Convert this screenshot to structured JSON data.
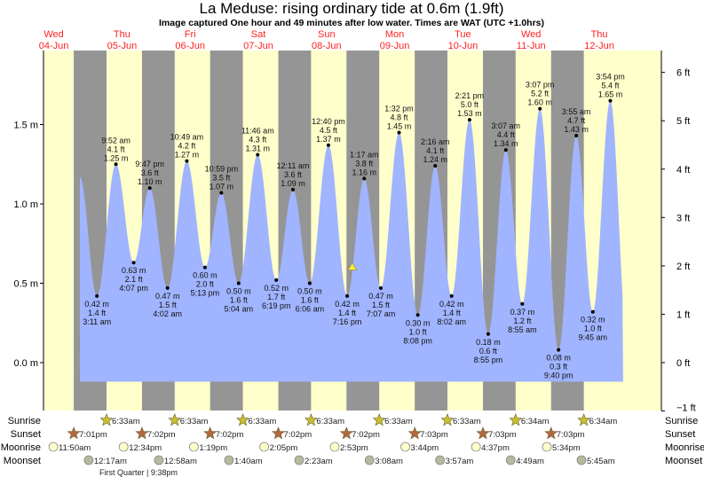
{
  "chart_data": {
    "type": "area",
    "title": "La Meduse: rising  ordinary tide at 0.6m (1.9ft)",
    "subtitle": "Image captured One hour and 49 minutes after low water. Times are WAT (UTC +1.0hrs)",
    "time_unit": "hours since Wed 04-Jun 00:00",
    "days": [
      {
        "dow": "Wed",
        "date": "04-Jun"
      },
      {
        "dow": "Thu",
        "date": "05-Jun"
      },
      {
        "dow": "Fri",
        "date": "06-Jun"
      },
      {
        "dow": "Sat",
        "date": "07-Jun"
      },
      {
        "dow": "Sun",
        "date": "08-Jun"
      },
      {
        "dow": "Mon",
        "date": "09-Jun"
      },
      {
        "dow": "Tue",
        "date": "10-Jun"
      },
      {
        "dow": "Wed",
        "date": "11-Jun"
      },
      {
        "dow": "Thu",
        "date": "12-Jun"
      }
    ],
    "y_left": {
      "ylim_m": [
        -0.3048,
        1.96
      ],
      "ticks": [
        {
          "v": 0.0,
          "label": "0.0 m"
        },
        {
          "v": 0.5,
          "label": "0.5 m"
        },
        {
          "v": 1.0,
          "label": "1.0 m"
        },
        {
          "v": 1.5,
          "label": "1.5 m"
        }
      ]
    },
    "y_right": {
      "ticks": [
        {
          "v": -1,
          "label": "−1 ft"
        },
        {
          "v": 0,
          "label": "0 ft"
        },
        {
          "v": 1,
          "label": "1 ft"
        },
        {
          "v": 2,
          "label": "2 ft"
        },
        {
          "v": 3,
          "label": "3 ft"
        },
        {
          "v": 4,
          "label": "4 ft"
        },
        {
          "v": 5,
          "label": "5 ft"
        },
        {
          "v": 6,
          "label": "6 ft"
        }
      ]
    },
    "curve_start": {
      "t": 21.2,
      "m": 1.17
    },
    "curve_end": {
      "t": 212.4,
      "m": 0.22
    },
    "current": {
      "t": 117.08,
      "m": 0.6
    },
    "tides": [
      {
        "t": 27.18,
        "type": "low",
        "m": "0.42 m",
        "ft": "1.4 ft",
        "time": "3:11 am",
        "v": 0.42
      },
      {
        "t": 33.87,
        "type": "high",
        "m": "1.25 m",
        "ft": "4.1 ft",
        "time": "9:52 am",
        "v": 1.25
      },
      {
        "t": 40.12,
        "type": "low",
        "m": "0.63 m",
        "ft": "2.1 ft",
        "time": "4:07 pm",
        "v": 0.63
      },
      {
        "t": 45.78,
        "type": "high",
        "m": "1.10 m",
        "ft": "3.6 ft",
        "time": "9:47 pm",
        "v": 1.1
      },
      {
        "t": 52.03,
        "type": "low",
        "m": "0.47 m",
        "ft": "1.5 ft",
        "time": "4:02 am",
        "v": 0.47
      },
      {
        "t": 58.82,
        "type": "high",
        "m": "1.27 m",
        "ft": "4.2 ft",
        "time": "10:49 am",
        "v": 1.27
      },
      {
        "t": 65.22,
        "type": "low",
        "m": "0.60 m",
        "ft": "2.0 ft",
        "time": "5:13 pm",
        "v": 0.6
      },
      {
        "t": 70.98,
        "type": "high",
        "m": "1.07 m",
        "ft": "3.5 ft",
        "time": "10:59 pm",
        "v": 1.07
      },
      {
        "t": 77.07,
        "type": "low",
        "m": "0.50 m",
        "ft": "1.6 ft",
        "time": "5:04 am",
        "v": 0.5
      },
      {
        "t": 83.77,
        "type": "high",
        "m": "1.31 m",
        "ft": "4.3 ft",
        "time": "11:46 am",
        "v": 1.31
      },
      {
        "t": 90.32,
        "type": "low",
        "m": "0.52 m",
        "ft": "1.7 ft",
        "time": "6:19 pm",
        "v": 0.52
      },
      {
        "t": 96.18,
        "type": "high",
        "m": "1.09 m",
        "ft": "3.6 ft",
        "time": "12:11 am",
        "v": 1.09
      },
      {
        "t": 102.1,
        "type": "low",
        "m": "0.50 m",
        "ft": "1.6 ft",
        "time": "6:06 am",
        "v": 0.5
      },
      {
        "t": 108.67,
        "type": "high",
        "m": "1.37 m",
        "ft": "4.5 ft",
        "time": "12:40 pm",
        "v": 1.37
      },
      {
        "t": 115.27,
        "type": "low",
        "m": "0.42 m",
        "ft": "1.4 ft",
        "time": "7:16 pm",
        "v": 0.42
      },
      {
        "t": 121.28,
        "type": "high",
        "m": "1.16 m",
        "ft": "3.8 ft",
        "time": "1:17 am",
        "v": 1.16
      },
      {
        "t": 127.12,
        "type": "low",
        "m": "0.47 m",
        "ft": "1.5 ft",
        "time": "7:07 am",
        "v": 0.47
      },
      {
        "t": 133.53,
        "type": "high",
        "m": "1.45 m",
        "ft": "4.8 ft",
        "time": "1:32 pm",
        "v": 1.45
      },
      {
        "t": 140.13,
        "type": "low",
        "m": "0.30 m",
        "ft": "1.0 ft",
        "time": "8:08 pm",
        "v": 0.3
      },
      {
        "t": 146.27,
        "type": "high",
        "m": "1.24 m",
        "ft": "4.1 ft",
        "time": "2:16 am",
        "v": 1.24
      },
      {
        "t": 152.03,
        "type": "low",
        "m": "0.42 m",
        "ft": "1.4 ft",
        "time": "8:02 am",
        "v": 0.42
      },
      {
        "t": 158.35,
        "type": "high",
        "m": "1.53 m",
        "ft": "5.0 ft",
        "time": "2:21 pm",
        "v": 1.53
      },
      {
        "t": 164.92,
        "type": "low",
        "m": "0.18 m",
        "ft": "0.6 ft",
        "time": "8:55 pm",
        "v": 0.18
      },
      {
        "t": 171.12,
        "type": "high",
        "m": "1.34 m",
        "ft": "4.4 ft",
        "time": "3:07 am",
        "v": 1.34
      },
      {
        "t": 176.92,
        "type": "low",
        "m": "0.37 m",
        "ft": "1.2 ft",
        "time": "8:55 am",
        "v": 0.37
      },
      {
        "t": 183.12,
        "type": "high",
        "m": "1.60 m",
        "ft": "5.2 ft",
        "time": "3:07 pm",
        "v": 1.6
      },
      {
        "t": 189.67,
        "type": "low",
        "m": "0.08 m",
        "ft": "0.3 ft",
        "time": "9:40 pm",
        "v": 0.08
      },
      {
        "t": 195.92,
        "type": "high",
        "m": "1.43 m",
        "ft": "4.7 ft",
        "time": "3:55 am",
        "v": 1.43
      },
      {
        "t": 201.75,
        "type": "low",
        "m": "0.32 m",
        "ft": "1.0 ft",
        "time": "9:45 am",
        "v": 0.32
      },
      {
        "t": 207.9,
        "type": "high",
        "m": "1.65 m",
        "ft": "5.4 ft",
        "time": "3:54 pm",
        "v": 1.65
      }
    ],
    "astro": {
      "labels": {
        "sunrise": "Sunrise",
        "sunset": "Sunset",
        "moonrise": "Moonrise",
        "moonset": "Moonset"
      },
      "sunrise": [
        {
          "day": 1,
          "time": "6:33am",
          "h": 6.55
        },
        {
          "day": 2,
          "time": "6:33am",
          "h": 6.55
        },
        {
          "day": 3,
          "time": "6:33am",
          "h": 6.55
        },
        {
          "day": 4,
          "time": "6:33am",
          "h": 6.55
        },
        {
          "day": 5,
          "time": "6:33am",
          "h": 6.55
        },
        {
          "day": 6,
          "time": "6:33am",
          "h": 6.55
        },
        {
          "day": 7,
          "time": "6:34am",
          "h": 6.57
        },
        {
          "day": 8,
          "time": "6:34am",
          "h": 6.57
        }
      ],
      "sunset": [
        {
          "day": 0,
          "time": "7:01pm",
          "h": 19.02
        },
        {
          "day": 1,
          "time": "7:02pm",
          "h": 19.03
        },
        {
          "day": 2,
          "time": "7:02pm",
          "h": 19.03
        },
        {
          "day": 3,
          "time": "7:02pm",
          "h": 19.03
        },
        {
          "day": 4,
          "time": "7:02pm",
          "h": 19.03
        },
        {
          "day": 5,
          "time": "7:03pm",
          "h": 19.05
        },
        {
          "day": 6,
          "time": "7:03pm",
          "h": 19.05
        },
        {
          "day": 7,
          "time": "7:03pm",
          "h": 19.05
        }
      ],
      "moonrise": [
        {
          "day": 0,
          "time": "11:50am",
          "h": 11.83
        },
        {
          "day": 1,
          "time": "12:34pm",
          "h": 12.57
        },
        {
          "day": 2,
          "time": "1:19pm",
          "h": 13.32
        },
        {
          "day": 3,
          "time": "2:05pm",
          "h": 14.08
        },
        {
          "day": 4,
          "time": "2:53pm",
          "h": 14.88
        },
        {
          "day": 5,
          "time": "3:44pm",
          "h": 15.73
        },
        {
          "day": 6,
          "time": "4:37pm",
          "h": 16.62
        },
        {
          "day": 7,
          "time": "5:34pm",
          "h": 17.57
        }
      ],
      "moonset": [
        {
          "day": 1,
          "time": "12:17am",
          "h": 0.28
        },
        {
          "day": 2,
          "time": "12:58am",
          "h": 0.97
        },
        {
          "day": 3,
          "time": "1:40am",
          "h": 1.67
        },
        {
          "day": 4,
          "time": "2:23am",
          "h": 2.38
        },
        {
          "day": 5,
          "time": "3:08am",
          "h": 3.13
        },
        {
          "day": 6,
          "time": "3:57am",
          "h": 3.95
        },
        {
          "day": 7,
          "time": "4:49am",
          "h": 4.82
        },
        {
          "day": 8,
          "time": "5:45am",
          "h": 5.75
        }
      ],
      "moon_phase": "First Quarter | 9:38pm"
    },
    "colors": {
      "day": "#ffffcc",
      "night": "#959595",
      "water": "#a0b4ff",
      "day_label": "#ff2222",
      "sunrise_star": "#c8c032",
      "sunset_star": "#b06a40",
      "moonrise": "#ffffcc",
      "moonset": "#b8b8a0"
    }
  }
}
